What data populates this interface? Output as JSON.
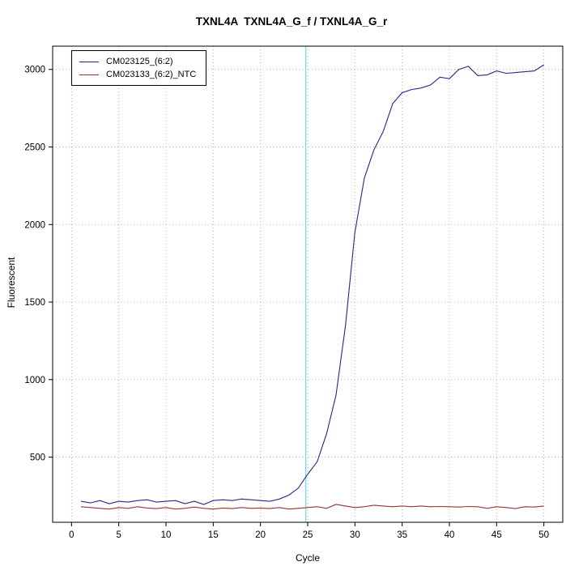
{
  "chart_data": {
    "type": "line",
    "title": "TXNL4A  TXNL4A_G_f / TXNL4A_G_r",
    "xlabel": "Cycle",
    "ylabel": "Fluorescent",
    "xlim": [
      -2,
      52
    ],
    "ylim": [
      80,
      3150
    ],
    "x_ticks": [
      0,
      5,
      10,
      15,
      20,
      25,
      30,
      35,
      40,
      45,
      50
    ],
    "y_ticks": [
      500,
      1000,
      1500,
      2000,
      2500,
      3000
    ],
    "grid": "dotted",
    "grid_color": "#b3b3b3",
    "axis_color": "#000000",
    "legend_position": "top-left",
    "threshold_line": {
      "x": 24.8,
      "color": "#6fe3ee"
    },
    "x": [
      1,
      2,
      3,
      4,
      5,
      6,
      7,
      8,
      9,
      10,
      11,
      12,
      13,
      14,
      15,
      16,
      17,
      18,
      19,
      20,
      21,
      22,
      23,
      24,
      25,
      26,
      27,
      28,
      29,
      30,
      31,
      32,
      33,
      34,
      35,
      36,
      37,
      38,
      39,
      40,
      41,
      42,
      43,
      44,
      45,
      46,
      47,
      48,
      49,
      50
    ],
    "series": [
      {
        "name": "CM023125_(6:2)",
        "color": "#26268c",
        "values": [
          215,
          205,
          220,
          200,
          215,
          210,
          220,
          225,
          210,
          215,
          220,
          200,
          215,
          195,
          220,
          225,
          220,
          230,
          225,
          220,
          215,
          230,
          255,
          300,
          390,
          470,
          650,
          900,
          1350,
          1950,
          2300,
          2480,
          2600,
          2780,
          2850,
          2870,
          2880,
          2900,
          2950,
          2940,
          3000,
          3020,
          2960,
          2965,
          2990,
          2975,
          2980,
          2985,
          2990,
          3030
        ]
      },
      {
        "name": "CM023133_(6:2)_NTC",
        "color": "#993333",
        "values": [
          180,
          175,
          170,
          165,
          175,
          170,
          180,
          172,
          168,
          175,
          165,
          170,
          178,
          170,
          165,
          172,
          168,
          175,
          170,
          172,
          168,
          175,
          165,
          170,
          175,
          180,
          170,
          195,
          185,
          175,
          180,
          190,
          185,
          180,
          185,
          180,
          185,
          180,
          182,
          180,
          178,
          182,
          180,
          170,
          180,
          175,
          168,
          180,
          178,
          185
        ]
      }
    ]
  }
}
